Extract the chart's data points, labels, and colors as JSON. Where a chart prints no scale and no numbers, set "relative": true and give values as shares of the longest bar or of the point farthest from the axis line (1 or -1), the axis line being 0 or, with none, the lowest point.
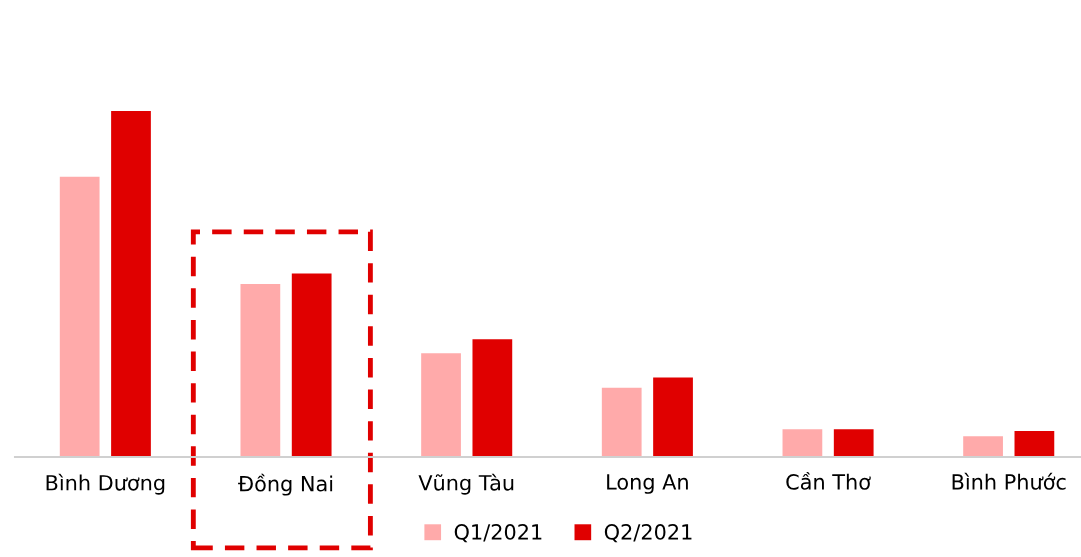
{
  "chart_data": {
    "type": "bar",
    "relative": true,
    "categories": [
      "Bình Dương",
      "Đồng Nai",
      "Vũng Tàu",
      "Long An",
      "Cần Thơ",
      "Bình Phước"
    ],
    "series": [
      {
        "name": "Q1/2021",
        "color": "#ffaaaa",
        "values": [
          0.81,
          0.5,
          0.3,
          0.2,
          0.08,
          0.06
        ]
      },
      {
        "name": "Q2/2021",
        "color": "#e00000",
        "values": [
          1,
          0.53,
          0.34,
          0.23,
          0.08,
          0.075
        ]
      }
    ],
    "legend": "bottom",
    "grid": false
  }
}
